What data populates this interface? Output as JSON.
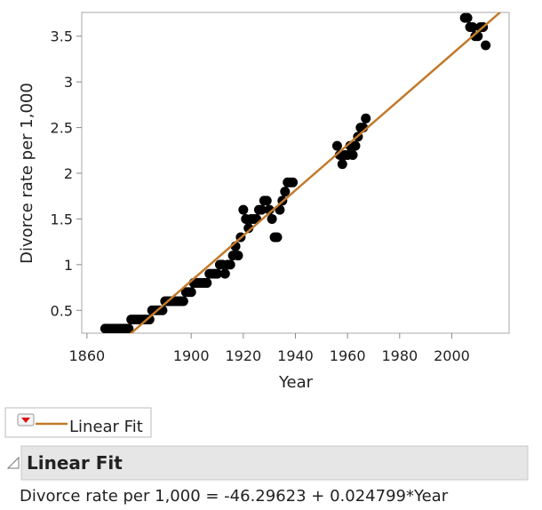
{
  "chart_data": {
    "type": "scatter",
    "x_label": "Year",
    "y_label": "Divorce rate per 1,000",
    "xlim": [
      1858,
      2022
    ],
    "ylim": [
      0.25,
      3.76
    ],
    "xticks": [
      1860,
      1900,
      1920,
      1940,
      1960,
      1980,
      2000
    ],
    "yticks": [
      0.5,
      1,
      1.5,
      2,
      2.5,
      3,
      3.5
    ],
    "grid": false,
    "color": "#000000",
    "x": [
      1867,
      1868,
      1869,
      1870,
      1871,
      1872,
      1873,
      1874,
      1875,
      1876,
      1877,
      1878,
      1879,
      1880,
      1881,
      1882,
      1883,
      1884,
      1885,
      1886,
      1887,
      1888,
      1889,
      1890,
      1891,
      1892,
      1893,
      1894,
      1895,
      1896,
      1897,
      1898,
      1899,
      1900,
      1901,
      1902,
      1903,
      1904,
      1905,
      1906,
      1907,
      1908,
      1909,
      1910,
      1911,
      1912,
      1913,
      1914,
      1915,
      1916,
      1917,
      1918,
      1919,
      1920,
      1921,
      1922,
      1923,
      1924,
      1925,
      1926,
      1927,
      1928,
      1929,
      1930,
      1931,
      1932,
      1933,
      1934,
      1935,
      1936,
      1937,
      1938,
      1939,
      1956,
      1957,
      1958,
      1959,
      1960,
      1961,
      1962,
      1963,
      1964,
      1965,
      1966,
      1967,
      2005,
      2006,
      2007,
      2008,
      2009,
      2010,
      2011,
      2012,
      2013
    ],
    "values": [
      0.3,
      0.3,
      0.3,
      0.3,
      0.3,
      0.3,
      0.3,
      0.3,
      0.3,
      0.3,
      0.4,
      0.4,
      0.4,
      0.4,
      0.4,
      0.4,
      0.4,
      0.4,
      0.5,
      0.5,
      0.5,
      0.5,
      0.5,
      0.6,
      0.6,
      0.6,
      0.6,
      0.6,
      0.6,
      0.6,
      0.6,
      0.7,
      0.7,
      0.7,
      0.8,
      0.8,
      0.8,
      0.8,
      0.8,
      0.8,
      0.9,
      0.9,
      0.9,
      0.9,
      1.0,
      1.0,
      0.9,
      1.0,
      1.0,
      1.1,
      1.2,
      1.1,
      1.3,
      1.6,
      1.5,
      1.4,
      1.5,
      1.5,
      1.5,
      1.6,
      1.6,
      1.7,
      1.7,
      1.6,
      1.5,
      1.3,
      1.3,
      1.6,
      1.7,
      1.8,
      1.9,
      1.9,
      1.9,
      2.3,
      2.2,
      2.1,
      2.2,
      2.2,
      2.3,
      2.2,
      2.3,
      2.4,
      2.5,
      2.5,
      2.6,
      3.7,
      3.7,
      3.6,
      3.6,
      3.5,
      3.5,
      3.6,
      3.6,
      3.4
    ],
    "fit": {
      "name": "Linear Fit",
      "color": "#c27a2c",
      "intercept": -46.29623,
      "slope": 0.024799,
      "equation": "Divorce rate per 1,000 = -46.29623 + 0.024799*Year"
    },
    "report_title": "Linear Fit"
  }
}
